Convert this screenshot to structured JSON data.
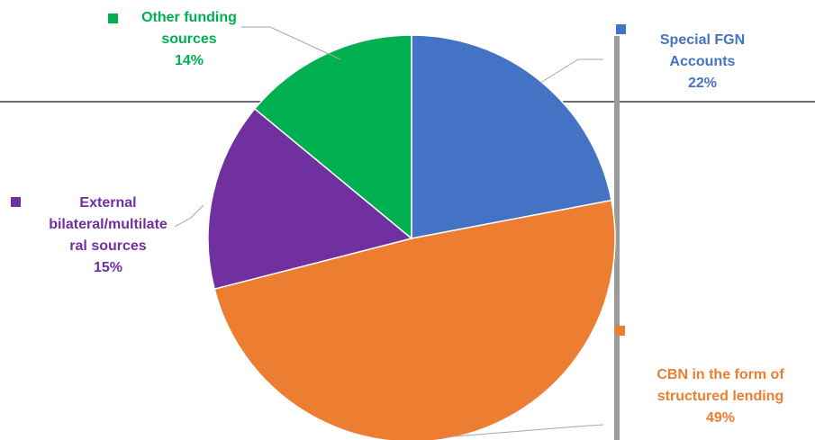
{
  "chart_data": {
    "type": "pie",
    "title": "",
    "start_angle_deg": 0,
    "direction": "clockwise",
    "slices": [
      {
        "label": "Special FGN Accounts",
        "value": 22,
        "percent_label": "22%",
        "color": "#4472C4"
      },
      {
        "label": "CBN in the form of structured lending",
        "value": 49,
        "percent_label": "49%",
        "color": "#ED7D31"
      },
      {
        "label": "External bilateral/multilateral sources",
        "value": 15,
        "percent_label": "15%",
        "color": "#7030A0"
      },
      {
        "label": "Other funding sources",
        "value": 14,
        "percent_label": "14%",
        "color": "#00B050"
      }
    ]
  },
  "labels": {
    "fgn": {
      "lines": [
        "Special FGN",
        "Accounts"
      ],
      "pct": "22%"
    },
    "cbn": {
      "lines": [
        "CBN in the form of",
        "structured lending"
      ],
      "pct": "49%"
    },
    "ext": {
      "lines": [
        "External",
        "bilateral/multilate",
        "ral sources"
      ],
      "pct": "15%"
    },
    "other": {
      "lines": [
        "Other funding",
        "sources"
      ],
      "pct": "14%"
    }
  }
}
